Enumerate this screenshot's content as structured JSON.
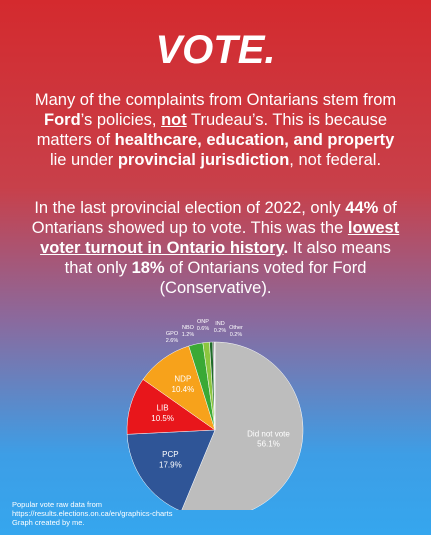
{
  "title": "VOTE.",
  "paragraphs": [
    {
      "runs": [
        {
          "text": "Many of the complaints from Ontarians stem from "
        },
        {
          "text": "Ford",
          "bold": true
        },
        {
          "text": "’s policies, "
        },
        {
          "text": "not",
          "bold": true,
          "underline": true
        },
        {
          "text": " Trudeau’s. This is because matters of "
        },
        {
          "text": "healthcare, education, and property",
          "bold": true
        },
        {
          "text": " lie under "
        },
        {
          "text": "provincial jurisdiction",
          "bold": true
        },
        {
          "text": ", not federal."
        }
      ]
    },
    {
      "runs": [
        {
          "text": "In the last provincial election of 2022, only "
        },
        {
          "text": "44%",
          "bold": true
        },
        {
          "text": " of Ontarians showed up to vote. This was the "
        },
        {
          "text": "lowest voter turnout in Ontario history",
          "bold": true,
          "underline": true
        },
        {
          "text": ".",
          "bold": true
        },
        {
          "text": " It also means that only "
        },
        {
          "text": "18%",
          "bold": true
        },
        {
          "text": " of Ontarians voted for Ford (Conservative)."
        }
      ]
    }
  ],
  "chart_data": {
    "type": "pie",
    "categories": [
      "Did not vote",
      "PCP",
      "LIB",
      "NDP",
      "GPO",
      "NBO",
      "ONP",
      "IND",
      "Other"
    ],
    "values": [
      56.1,
      17.9,
      10.5,
      10.4,
      2.6,
      1.2,
      0.6,
      0.2,
      0.2
    ],
    "value_labels": [
      "56.1%",
      "17.9%",
      "10.5%",
      "10.4%",
      "2.6%",
      "1.2%",
      "0.6%",
      "0.2%",
      "0.2%"
    ],
    "colors": [
      "#bdbdbd",
      "#2f5597",
      "#e8161b",
      "#f7a21b",
      "#3aa935",
      "#8cc63f",
      "#1f6b2a",
      "#222222",
      "#d9d9d9"
    ]
  },
  "footnote": [
    "Popular vote raw data from",
    "https://results.elections.on.ca/en/graphics-charts",
    "Graph created by me."
  ]
}
